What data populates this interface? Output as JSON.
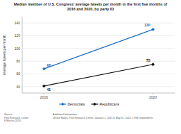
{
  "chart_data": {
    "type": "line",
    "title": "Median member of U.S. Congress’ average tweets per month in the first five months of\n2016 and 2020, by party ID",
    "ylabel": "Average tweets per month",
    "x": [
      2016,
      2020
    ],
    "xlim": [
      2015.2,
      2020.8
    ],
    "xticks": [
      2016,
      2020
    ],
    "ylim": [
      30,
      150
    ],
    "yticks": [
      40,
      60,
      80,
      100,
      120,
      140
    ],
    "grid": true,
    "legend": "bottom",
    "data_labels": true,
    "marker": "diamond",
    "series": [
      {
        "name": "Democrats",
        "color": "#1a6ec7",
        "values": [
          68,
          130
        ]
      },
      {
        "name": "Republicans",
        "color": "#111111",
        "values": [
          41,
          75
        ]
      }
    ],
    "annotations": [
      "Source:\nPew Research Center\n8 Marcus 2020",
      "Additional Information:\nUnited States, Pew Research Center, January 1, 2015 & May 31, 2020, 1,984 respondents"
    ]
  }
}
